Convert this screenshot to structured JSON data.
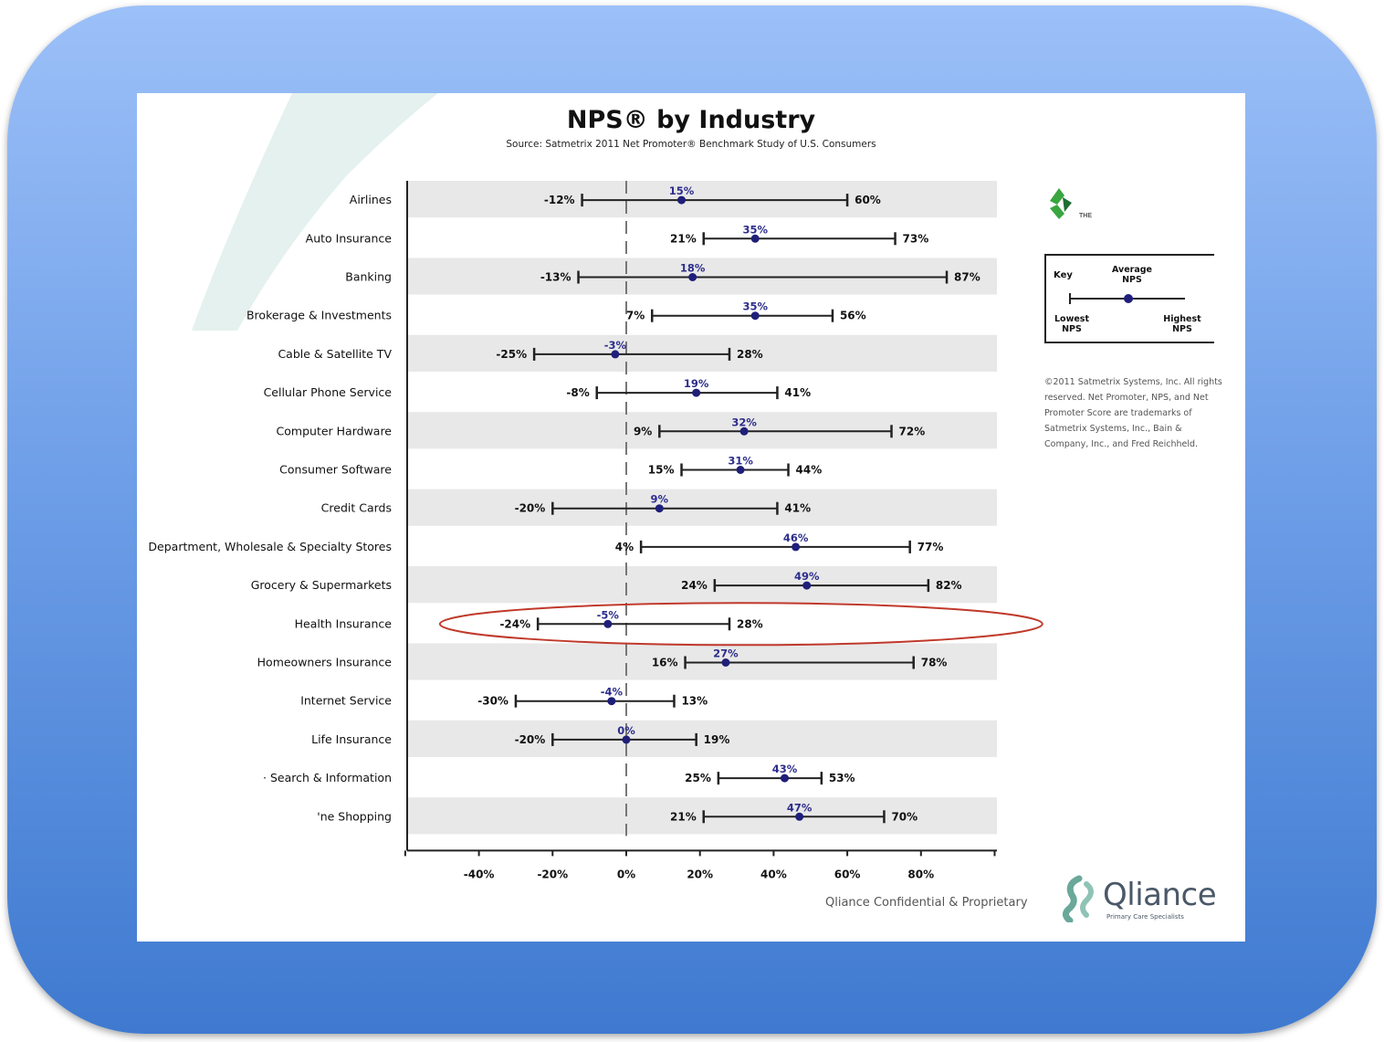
{
  "title": "NPS® by Industry",
  "subtitle": "Source: Satmetrix 2011 Net Promoter® Benchmark Study of U.S. Consumers",
  "key": {
    "title": "Key",
    "average": "Average\nNPS",
    "lowest": "Lowest\nNPS",
    "highest": "Highest\nNPS"
  },
  "copyright": "©2011 Satmetrix Systems, Inc. All rights reserved. Net Promoter, NPS, and Net Promoter Score are trademarks of Satmetrix Systems, Inc., Bain & Company, Inc., and Fred Reichheld.",
  "footer": "Qliance Confidential & Proprietary",
  "brand": {
    "name": "Qliance",
    "tagline": "Primary Care Specialists"
  },
  "colors": {
    "average_marker": "#1f1f7a",
    "highlight_ellipse": "#c0392b",
    "row_band": "#e8e8e8"
  },
  "chart_data": {
    "type": "range",
    "title": "NPS® by Industry",
    "x_ticks": [
      "-40%",
      "-20%",
      "0%",
      "20%",
      "40%",
      "60%",
      "80%"
    ],
    "xlim": [
      -60,
      100
    ],
    "series": [
      {
        "category": "Airlines",
        "low": -12,
        "avg": 15,
        "high": 60
      },
      {
        "category": "Auto Insurance",
        "low": 21,
        "avg": 35,
        "high": 73
      },
      {
        "category": "Banking",
        "low": -13,
        "avg": 18,
        "high": 87
      },
      {
        "category": "Brokerage & Investments",
        "low": 7,
        "avg": 35,
        "high": 56
      },
      {
        "category": "Cable & Satellite TV",
        "low": -25,
        "avg": -3,
        "high": 28
      },
      {
        "category": "Cellular Phone Service",
        "low": -8,
        "avg": 19,
        "high": 41
      },
      {
        "category": "Computer Hardware",
        "low": 9,
        "avg": 32,
        "high": 72
      },
      {
        "category": "Consumer Software",
        "low": 15,
        "avg": 31,
        "high": 44
      },
      {
        "category": "Credit Cards",
        "low": -20,
        "avg": 9,
        "high": 41
      },
      {
        "category": "Department, Wholesale & Specialty Stores",
        "low": 4,
        "avg": 46,
        "high": 77
      },
      {
        "category": "Grocery & Supermarkets",
        "low": 24,
        "avg": 49,
        "high": 82
      },
      {
        "category": "Health Insurance",
        "low": -24,
        "avg": -5,
        "high": 28,
        "highlighted": true
      },
      {
        "category": "Homeowners Insurance",
        "low": 16,
        "avg": 27,
        "high": 78
      },
      {
        "category": "Internet Service",
        "low": -30,
        "avg": -4,
        "high": 13
      },
      {
        "category": "Life Insurance",
        "low": -20,
        "avg": 0,
        "high": 19
      },
      {
        "category": "· Search & Information",
        "low": 25,
        "avg": 43,
        "high": 53
      },
      {
        "category": "'ne Shopping",
        "low": 21,
        "avg": 47,
        "high": 70
      }
    ]
  }
}
